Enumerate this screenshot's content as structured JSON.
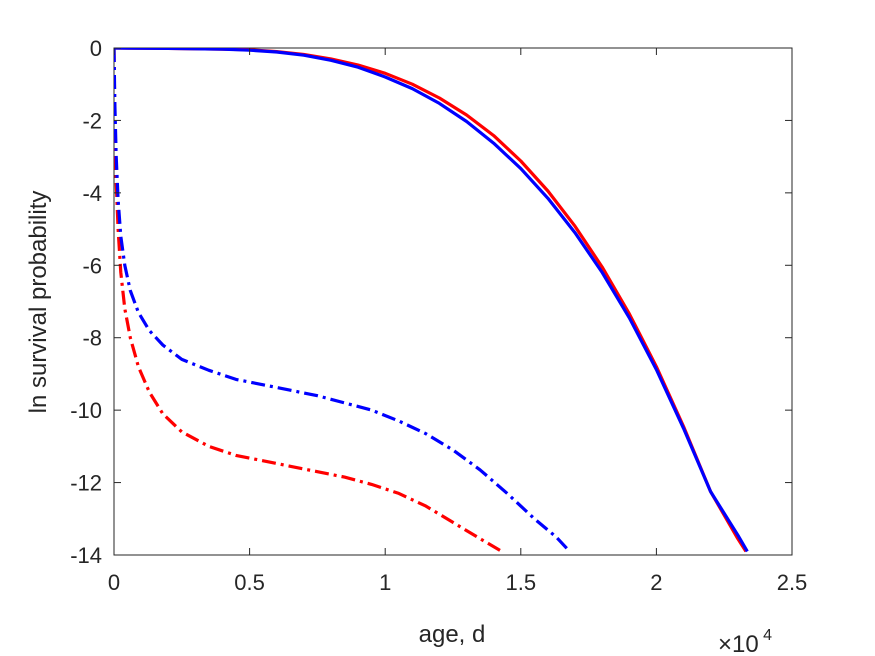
{
  "chart_data": {
    "type": "line",
    "xlabel": "age, d",
    "ylabel": "ln survival probability",
    "x_multiplier": {
      "base": "×10",
      "exponent": "4"
    },
    "xlim": [
      0,
      25000
    ],
    "ylim": [
      -14,
      0
    ],
    "xticks": [
      0,
      5000,
      10000,
      15000,
      20000,
      25000
    ],
    "xtick_labels": [
      "0",
      "0.5",
      "1",
      "1.5",
      "2",
      "2.5"
    ],
    "yticks": [
      0,
      -2,
      -4,
      -6,
      -8,
      -10,
      -12,
      -14
    ],
    "ytick_labels": [
      "0",
      "-2",
      "-4",
      "-6",
      "-8",
      "-10",
      "-12",
      "-14"
    ],
    "grid": false,
    "series": [
      {
        "color": "#ff0000",
        "style": "solid",
        "x": [
          0,
          2000,
          4000,
          5000,
          6000,
          7000,
          8000,
          9000,
          10000,
          11000,
          12000,
          13000,
          14000,
          15000,
          16000,
          17000,
          18000,
          19000,
          20000,
          21000,
          22000,
          23000,
          23300
        ],
        "y": [
          0,
          -0.01,
          -0.03,
          -0.05,
          -0.1,
          -0.18,
          -0.3,
          -0.47,
          -0.7,
          -1.0,
          -1.38,
          -1.85,
          -2.42,
          -3.12,
          -3.95,
          -4.92,
          -6.05,
          -7.34,
          -8.8,
          -10.45,
          -12.25,
          -13.55,
          -13.9
        ]
      },
      {
        "color": "#0000ff",
        "style": "solid",
        "x": [
          0,
          2000,
          4000,
          5000,
          6000,
          7000,
          8000,
          9000,
          10000,
          11000,
          12000,
          13000,
          14000,
          15000,
          16000,
          17000,
          18000,
          19000,
          20000,
          21000,
          22000,
          23000,
          23350
        ],
        "y": [
          0,
          -0.01,
          -0.03,
          -0.06,
          -0.11,
          -0.2,
          -0.34,
          -0.53,
          -0.8,
          -1.12,
          -1.53,
          -2.03,
          -2.63,
          -3.33,
          -4.15,
          -5.1,
          -6.2,
          -7.45,
          -8.88,
          -10.5,
          -12.25,
          -13.45,
          -13.9
        ]
      },
      {
        "color": "#ff0000",
        "style": "dashdot",
        "x": [
          0,
          30,
          80,
          150,
          250,
          400,
          600,
          900,
          1300,
          1800,
          2500,
          3500,
          4500,
          5500,
          6500,
          7500,
          8500,
          9500,
          10500,
          11500,
          12500,
          13500,
          14300
        ],
        "y": [
          0,
          -2.0,
          -3.7,
          -5.0,
          -6.2,
          -7.2,
          -8.0,
          -8.8,
          -9.5,
          -10.1,
          -10.6,
          -11.0,
          -11.25,
          -11.4,
          -11.55,
          -11.7,
          -11.85,
          -12.05,
          -12.3,
          -12.65,
          -13.1,
          -13.55,
          -13.9
        ]
      },
      {
        "color": "#0000ff",
        "style": "dashdot",
        "x": [
          0,
          30,
          80,
          150,
          250,
          400,
          600,
          900,
          1300,
          1800,
          2500,
          3500,
          4500,
          5500,
          6500,
          7500,
          8500,
          9500,
          10500,
          11500,
          12500,
          13500,
          14500,
          15500,
          16300,
          16800
        ],
        "y": [
          0,
          -1.5,
          -3.0,
          -4.2,
          -5.2,
          -6.0,
          -6.7,
          -7.3,
          -7.8,
          -8.2,
          -8.6,
          -8.9,
          -9.15,
          -9.3,
          -9.45,
          -9.6,
          -9.8,
          -10.0,
          -10.3,
          -10.65,
          -11.1,
          -11.65,
          -12.3,
          -13.0,
          -13.5,
          -13.9
        ]
      }
    ]
  }
}
